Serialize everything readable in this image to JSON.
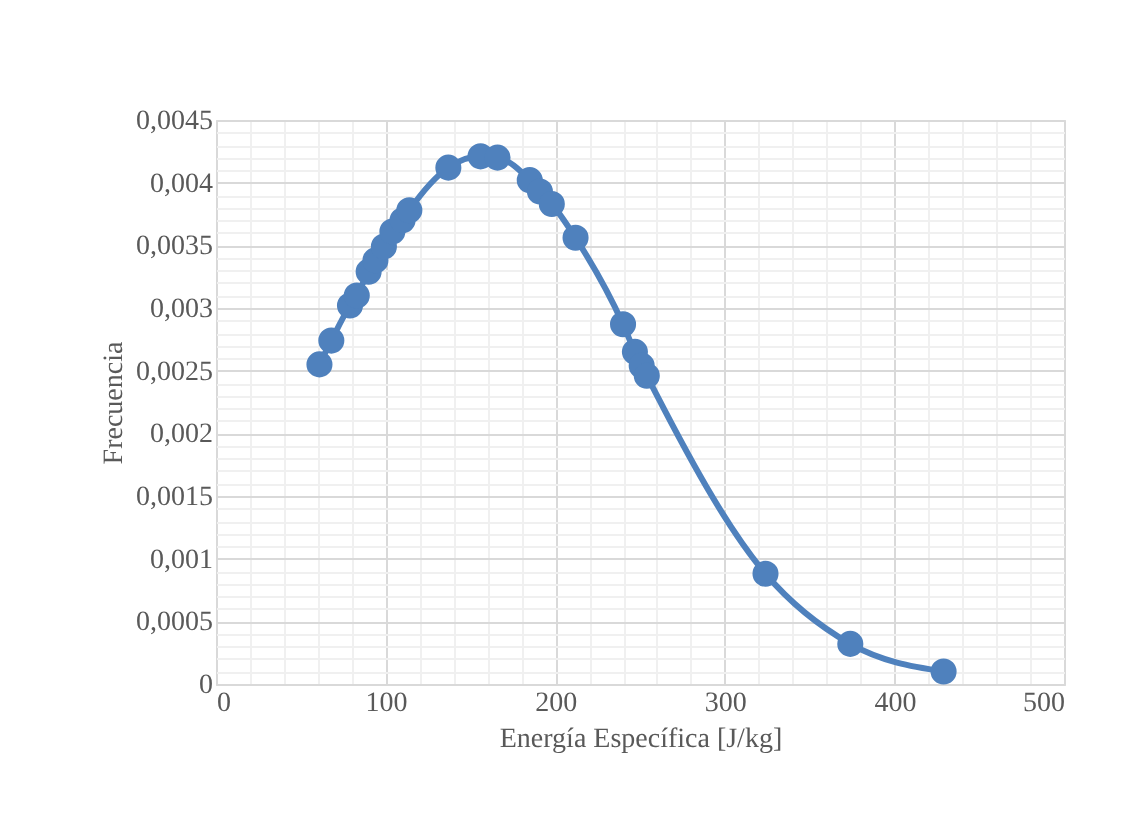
{
  "chart_data": {
    "type": "line",
    "xlabel": "Energía Específica [J/kg]",
    "ylabel": "Frecuencia",
    "x": [
      61,
      68,
      79,
      83,
      90,
      94,
      99,
      104,
      110,
      114,
      137,
      156,
      166,
      185,
      191,
      198,
      212,
      240,
      247,
      251,
      254,
      324,
      374,
      429
    ],
    "series": [
      {
        "color": "#4f81bd",
        "values": [
          0.00255,
          0.00274,
          0.00302,
          0.0031,
          0.00329,
          0.00338,
          0.00349,
          0.00361,
          0.0037,
          0.00378,
          0.00412,
          0.00421,
          0.0042,
          0.00402,
          0.00393,
          0.00383,
          0.00356,
          0.00287,
          0.00265,
          0.00254,
          0.00246,
          0.00088,
          0.00032,
          0.0001
        ]
      }
    ],
    "xlim": [
      0,
      500
    ],
    "xticks": [
      0,
      {
        "value": 20,
        "label": null
      },
      {
        "value": 40,
        "label": null
      },
      {
        "value": 60,
        "label": null
      },
      {
        "value": 80,
        "label": null
      },
      100,
      {
        "value": 120,
        "label": null
      },
      {
        "value": 140,
        "label": null
      },
      {
        "value": 160,
        "label": null
      },
      {
        "value": 180,
        "label": null
      },
      200,
      {
        "value": 220,
        "label": null
      },
      {
        "value": 240,
        "label": null
      },
      {
        "value": 260,
        "label": null
      },
      {
        "value": 280,
        "label": null
      },
      300,
      {
        "value": 320,
        "label": null
      },
      {
        "value": 340,
        "label": null
      },
      {
        "value": 360,
        "label": null
      },
      {
        "value": 380,
        "label": null
      },
      400,
      {
        "value": 420,
        "label": null
      },
      {
        "value": 440,
        "label": null
      },
      {
        "value": 460,
        "label": null
      },
      {
        "value": 480,
        "label": null
      },
      500
    ],
    "ylim": [
      0,
      0.0045
    ],
    "yticks": [
      0,
      {
        "value": 0.0001,
        "label": null
      },
      {
        "value": 0.0002,
        "label": null
      },
      {
        "value": 0.0003,
        "label": null
      },
      {
        "value": 0.0004,
        "label": null
      },
      {
        "value": 0.0005,
        "label": "0,0005"
      },
      {
        "value": 0.0006,
        "label": null
      },
      {
        "value": 0.0007,
        "label": null
      },
      {
        "value": 0.0008,
        "label": null
      },
      {
        "value": 0.0009,
        "label": null
      },
      {
        "value": 0.001,
        "label": "0,001"
      },
      {
        "value": 0.0011,
        "label": null
      },
      {
        "value": 0.0012,
        "label": null
      },
      {
        "value": 0.0013,
        "label": null
      },
      {
        "value": 0.0014,
        "label": null
      },
      {
        "value": 0.0015,
        "label": "0,0015"
      },
      {
        "value": 0.0016,
        "label": null
      },
      {
        "value": 0.0017,
        "label": null
      },
      {
        "value": 0.0018,
        "label": null
      },
      {
        "value": 0.0019,
        "label": null
      },
      {
        "value": 0.002,
        "label": "0,002"
      },
      {
        "value": 0.0021,
        "label": null
      },
      {
        "value": 0.0022,
        "label": null
      },
      {
        "value": 0.0023,
        "label": null
      },
      {
        "value": 0.0024,
        "label": null
      },
      {
        "value": 0.0025,
        "label": "0,0025"
      },
      {
        "value": 0.0026,
        "label": null
      },
      {
        "value": 0.0027,
        "label": null
      },
      {
        "value": 0.0028,
        "label": null
      },
      {
        "value": 0.0029,
        "label": null
      },
      {
        "value": 0.003,
        "label": "0,003"
      },
      {
        "value": 0.0031,
        "label": null
      },
      {
        "value": 0.0032,
        "label": null
      },
      {
        "value": 0.0033,
        "label": null
      },
      {
        "value": 0.0034,
        "label": null
      },
      {
        "value": 0.0035,
        "label": "0,0035"
      },
      {
        "value": 0.0036,
        "label": null
      },
      {
        "value": 0.0037,
        "label": null
      },
      {
        "value": 0.0038,
        "label": null
      },
      {
        "value": 0.0039,
        "label": null
      },
      {
        "value": 0.004,
        "label": "0,004"
      },
      {
        "value": 0.0041,
        "label": null
      },
      {
        "value": 0.0042,
        "label": null
      },
      {
        "value": 0.0043,
        "label": null
      },
      {
        "value": 0.0044,
        "label": null
      },
      {
        "value": 0.0045,
        "label": "0,0045"
      }
    ],
    "grid": true,
    "marker": "circle",
    "line_style": "solid"
  }
}
